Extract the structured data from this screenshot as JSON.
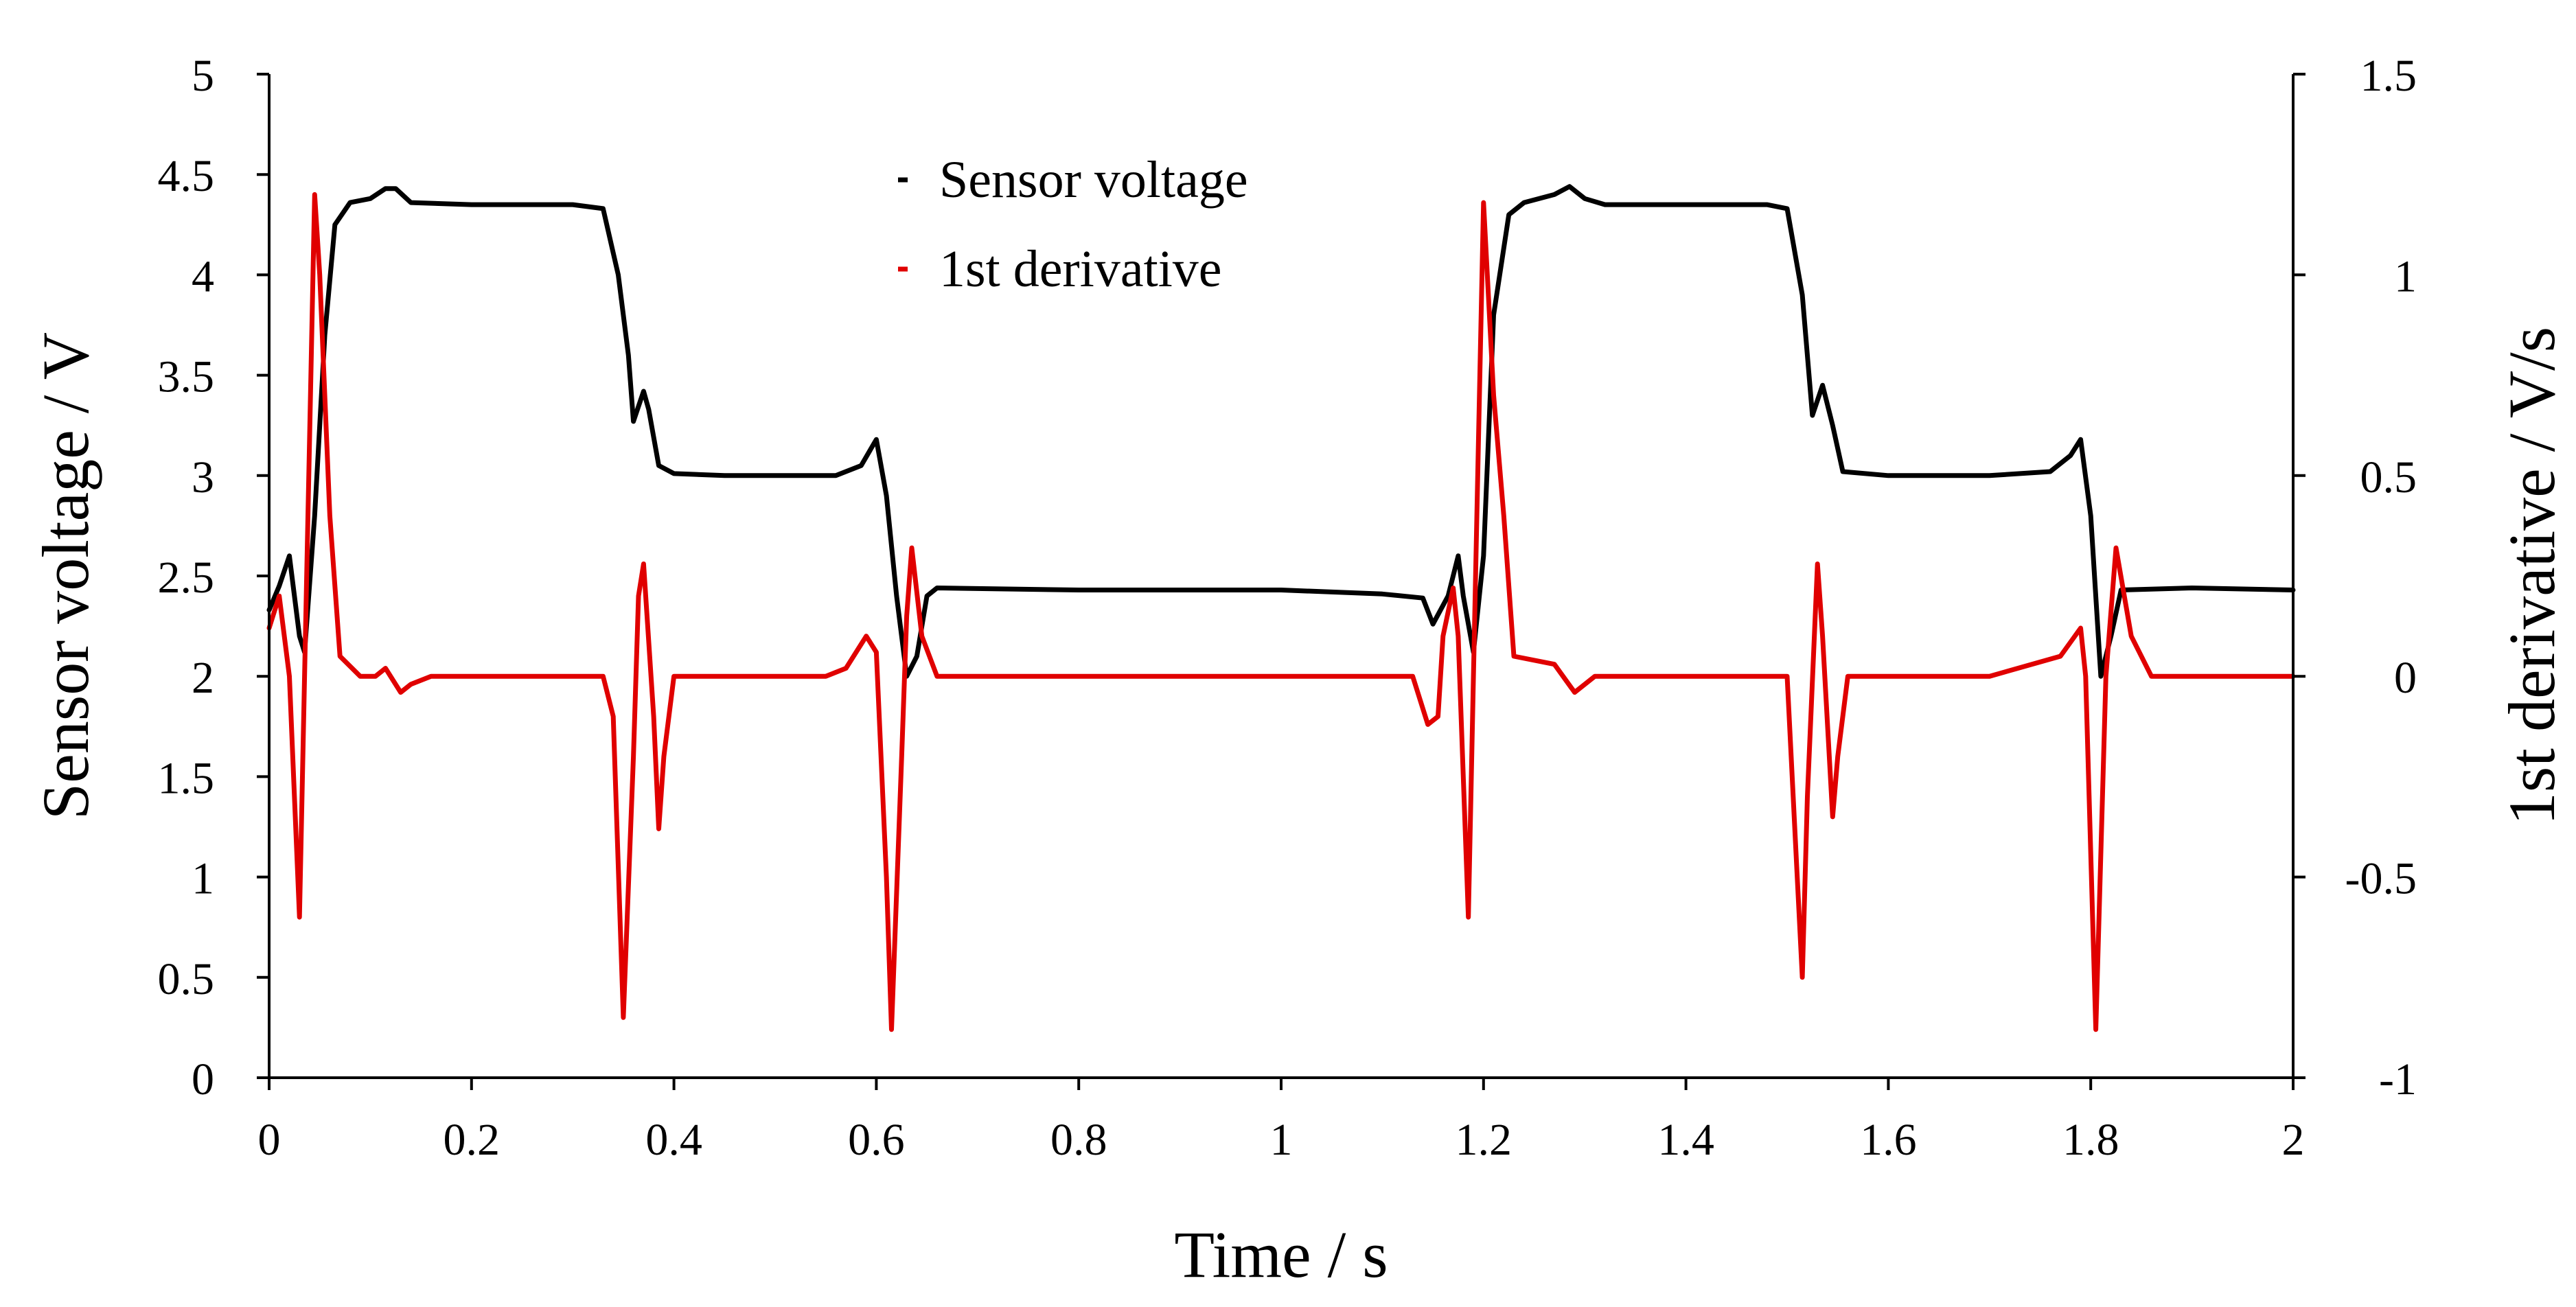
{
  "chart_data": {
    "type": "line",
    "title": "",
    "xlabel": "Time / s",
    "ylabel": "Sensor voltage / V",
    "y2label": "1st derivative / V/s",
    "xlim": [
      0,
      2
    ],
    "ylim": [
      0,
      5
    ],
    "y2lim": [
      -1,
      1.5
    ],
    "x_ticks": [
      "0",
      "0.2",
      "0.4",
      "0.6",
      "0.8",
      "1",
      "1.2",
      "1.4",
      "1.6",
      "1.8",
      "2"
    ],
    "y_ticks": [
      "0",
      "0.5",
      "1",
      "1.5",
      "2",
      "2.5",
      "3",
      "3.5",
      "4",
      "4.5",
      "5"
    ],
    "y2_ticks": [
      "-1",
      "-0.5",
      "0",
      "0.5",
      "1",
      "1.5"
    ],
    "grid": false,
    "legend_position": "top-center",
    "series": [
      {
        "name": "Sensor voltage",
        "axis": "left",
        "color": "#000000",
        "points": [
          [
            0,
            2.33
          ],
          [
            0.01,
            2.45
          ],
          [
            0.02,
            2.6
          ],
          [
            0.03,
            2.2
          ],
          [
            0.035,
            2.12
          ],
          [
            0.045,
            2.8
          ],
          [
            0.055,
            3.7
          ],
          [
            0.065,
            4.25
          ],
          [
            0.08,
            4.36
          ],
          [
            0.1,
            4.38
          ],
          [
            0.115,
            4.43
          ],
          [
            0.125,
            4.43
          ],
          [
            0.14,
            4.36
          ],
          [
            0.2,
            4.35
          ],
          [
            0.25,
            4.35
          ],
          [
            0.3,
            4.35
          ],
          [
            0.33,
            4.33
          ],
          [
            0.345,
            4.0
          ],
          [
            0.355,
            3.6
          ],
          [
            0.36,
            3.27
          ],
          [
            0.37,
            3.42
          ],
          [
            0.375,
            3.33
          ],
          [
            0.385,
            3.05
          ],
          [
            0.4,
            3.01
          ],
          [
            0.45,
            3.0
          ],
          [
            0.5,
            3.0
          ],
          [
            0.56,
            3.0
          ],
          [
            0.585,
            3.05
          ],
          [
            0.6,
            3.18
          ],
          [
            0.61,
            2.9
          ],
          [
            0.62,
            2.4
          ],
          [
            0.63,
            2.0
          ],
          [
            0.64,
            2.1
          ],
          [
            0.65,
            2.4
          ],
          [
            0.66,
            2.44
          ],
          [
            0.8,
            2.43
          ],
          [
            1.0,
            2.43
          ],
          [
            1.1,
            2.41
          ],
          [
            1.14,
            2.39
          ],
          [
            1.15,
            2.26
          ],
          [
            1.165,
            2.4
          ],
          [
            1.175,
            2.6
          ],
          [
            1.18,
            2.4
          ],
          [
            1.19,
            2.12
          ],
          [
            1.2,
            2.6
          ],
          [
            1.21,
            3.8
          ],
          [
            1.225,
            4.3
          ],
          [
            1.24,
            4.36
          ],
          [
            1.27,
            4.4
          ],
          [
            1.285,
            4.44
          ],
          [
            1.3,
            4.38
          ],
          [
            1.32,
            4.35
          ],
          [
            1.4,
            4.35
          ],
          [
            1.48,
            4.35
          ],
          [
            1.5,
            4.33
          ],
          [
            1.515,
            3.9
          ],
          [
            1.525,
            3.3
          ],
          [
            1.535,
            3.45
          ],
          [
            1.545,
            3.25
          ],
          [
            1.555,
            3.02
          ],
          [
            1.6,
            3.0
          ],
          [
            1.7,
            3.0
          ],
          [
            1.76,
            3.02
          ],
          [
            1.78,
            3.1
          ],
          [
            1.79,
            3.18
          ],
          [
            1.8,
            2.8
          ],
          [
            1.81,
            2.0
          ],
          [
            1.82,
            2.2
          ],
          [
            1.83,
            2.43
          ],
          [
            1.9,
            2.44
          ],
          [
            2.0,
            2.43
          ]
        ]
      },
      {
        "name": "1st derivative",
        "axis": "right",
        "color": "#e00000",
        "points": [
          [
            0,
            0.12
          ],
          [
            0.01,
            0.2
          ],
          [
            0.02,
            0.0
          ],
          [
            0.03,
            -0.6
          ],
          [
            0.04,
            0.6
          ],
          [
            0.045,
            1.2
          ],
          [
            0.05,
            1.0
          ],
          [
            0.06,
            0.4
          ],
          [
            0.07,
            0.05
          ],
          [
            0.09,
            0.0
          ],
          [
            0.105,
            0.0
          ],
          [
            0.115,
            0.02
          ],
          [
            0.13,
            -0.04
          ],
          [
            0.14,
            -0.02
          ],
          [
            0.16,
            0.0
          ],
          [
            0.25,
            0.0
          ],
          [
            0.33,
            0.0
          ],
          [
            0.34,
            -0.1
          ],
          [
            0.35,
            -0.85
          ],
          [
            0.36,
            -0.2
          ],
          [
            0.365,
            0.2
          ],
          [
            0.37,
            0.28
          ],
          [
            0.38,
            -0.1
          ],
          [
            0.385,
            -0.38
          ],
          [
            0.39,
            -0.2
          ],
          [
            0.4,
            0.0
          ],
          [
            0.45,
            0.0
          ],
          [
            0.55,
            0.0
          ],
          [
            0.57,
            0.02
          ],
          [
            0.59,
            0.1
          ],
          [
            0.6,
            0.06
          ],
          [
            0.61,
            -0.5
          ],
          [
            0.615,
            -0.88
          ],
          [
            0.625,
            -0.2
          ],
          [
            0.63,
            0.15
          ],
          [
            0.635,
            0.32
          ],
          [
            0.645,
            0.1
          ],
          [
            0.66,
            0.0
          ],
          [
            0.8,
            0.0
          ],
          [
            1.0,
            0.0
          ],
          [
            1.13,
            0.0
          ],
          [
            1.145,
            -0.12
          ],
          [
            1.155,
            -0.1
          ],
          [
            1.16,
            0.1
          ],
          [
            1.17,
            0.22
          ],
          [
            1.175,
            0.1
          ],
          [
            1.185,
            -0.6
          ],
          [
            1.19,
            0.0
          ],
          [
            1.2,
            1.18
          ],
          [
            1.21,
            0.7
          ],
          [
            1.22,
            0.4
          ],
          [
            1.23,
            0.05
          ],
          [
            1.27,
            0.03
          ],
          [
            1.29,
            -0.04
          ],
          [
            1.31,
            0.0
          ],
          [
            1.4,
            0.0
          ],
          [
            1.5,
            0.0
          ],
          [
            1.51,
            -0.5
          ],
          [
            1.515,
            -0.75
          ],
          [
            1.52,
            -0.3
          ],
          [
            1.53,
            0.28
          ],
          [
            1.535,
            0.1
          ],
          [
            1.545,
            -0.35
          ],
          [
            1.55,
            -0.2
          ],
          [
            1.56,
            0.0
          ],
          [
            1.7,
            0.0
          ],
          [
            1.77,
            0.05
          ],
          [
            1.79,
            0.12
          ],
          [
            1.795,
            0.0
          ],
          [
            1.805,
            -0.88
          ],
          [
            1.815,
            0.0
          ],
          [
            1.825,
            0.32
          ],
          [
            1.84,
            0.1
          ],
          [
            1.86,
            0.0
          ],
          [
            1.9,
            0.0
          ],
          [
            2.0,
            0.0
          ]
        ]
      }
    ]
  }
}
